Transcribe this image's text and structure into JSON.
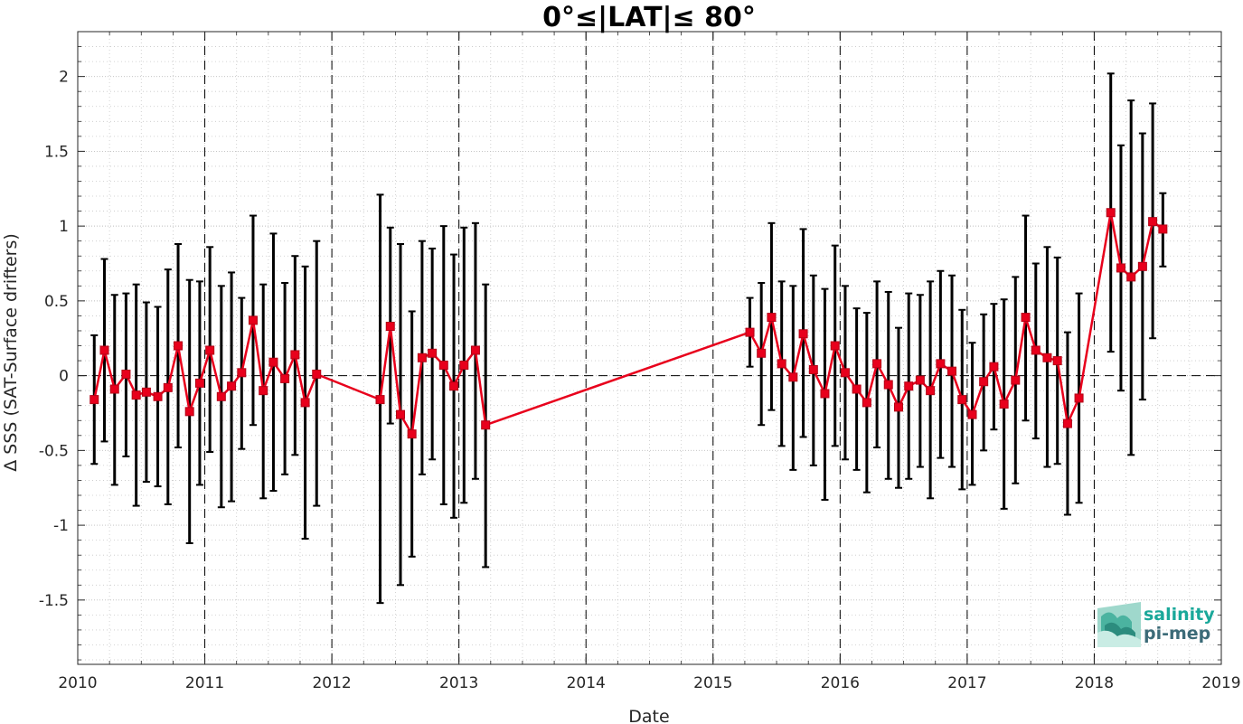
{
  "chart_data": {
    "type": "line",
    "title": "0°≤|LAT|≤ 80°",
    "xlabel": "Date",
    "ylabel": "Δ SSS (SAT-Surface drifters)",
    "xlim": [
      2010,
      2019
    ],
    "ylim": [
      -1.93,
      2.3
    ],
    "x_ticks": [
      "2010",
      "2011",
      "2012",
      "2013",
      "2014",
      "2015",
      "2016",
      "2017",
      "2018",
      "2019"
    ],
    "y_ticks": [
      "-1.5",
      "-1",
      "-0.5",
      "0",
      "0.5",
      "1",
      "1.5",
      "2"
    ],
    "y_tick_values": [
      -1.5,
      -1,
      -0.5,
      0,
      0.5,
      1,
      1.5,
      2
    ],
    "grid": true,
    "minor_grid": true,
    "year_dividers": [
      2011,
      2012,
      2013,
      2014,
      2015,
      2016,
      2017,
      2018
    ],
    "zero_line": 0,
    "series": [
      {
        "color": "#e8001c",
        "errorbar_color": "#000000",
        "marker": "square",
        "points": [
          {
            "x": 2010.13,
            "y": -0.16,
            "lo": -0.59,
            "hi": 0.27
          },
          {
            "x": 2010.21,
            "y": 0.17,
            "lo": -0.44,
            "hi": 0.78
          },
          {
            "x": 2010.29,
            "y": -0.09,
            "lo": -0.73,
            "hi": 0.54
          },
          {
            "x": 2010.38,
            "y": 0.01,
            "lo": -0.54,
            "hi": 0.55
          },
          {
            "x": 2010.46,
            "y": -0.13,
            "lo": -0.87,
            "hi": 0.61
          },
          {
            "x": 2010.54,
            "y": -0.11,
            "lo": -0.71,
            "hi": 0.49
          },
          {
            "x": 2010.63,
            "y": -0.14,
            "lo": -0.74,
            "hi": 0.46
          },
          {
            "x": 2010.71,
            "y": -0.08,
            "lo": -0.86,
            "hi": 0.71
          },
          {
            "x": 2010.79,
            "y": 0.2,
            "lo": -0.48,
            "hi": 0.88
          },
          {
            "x": 2010.88,
            "y": -0.24,
            "lo": -1.12,
            "hi": 0.64
          },
          {
            "x": 2010.96,
            "y": -0.05,
            "lo": -0.73,
            "hi": 0.63
          },
          {
            "x": 2011.04,
            "y": 0.17,
            "lo": -0.51,
            "hi": 0.86
          },
          {
            "x": 2011.13,
            "y": -0.14,
            "lo": -0.88,
            "hi": 0.6
          },
          {
            "x": 2011.21,
            "y": -0.07,
            "lo": -0.84,
            "hi": 0.69
          },
          {
            "x": 2011.29,
            "y": 0.02,
            "lo": -0.49,
            "hi": 0.52
          },
          {
            "x": 2011.38,
            "y": 0.37,
            "lo": -0.33,
            "hi": 1.07
          },
          {
            "x": 2011.46,
            "y": -0.1,
            "lo": -0.82,
            "hi": 0.61
          },
          {
            "x": 2011.54,
            "y": 0.09,
            "lo": -0.77,
            "hi": 0.95
          },
          {
            "x": 2011.63,
            "y": -0.02,
            "lo": -0.66,
            "hi": 0.62
          },
          {
            "x": 2011.71,
            "y": 0.14,
            "lo": -0.53,
            "hi": 0.8
          },
          {
            "x": 2011.79,
            "y": -0.18,
            "lo": -1.09,
            "hi": 0.73
          },
          {
            "x": 2011.88,
            "y": 0.01,
            "lo": -0.87,
            "hi": 0.9
          },
          {
            "x": 2012.38,
            "y": -0.16,
            "lo": -1.52,
            "hi": 1.21
          },
          {
            "x": 2012.46,
            "y": 0.33,
            "lo": -0.32,
            "hi": 0.99
          },
          {
            "x": 2012.54,
            "y": -0.26,
            "lo": -1.4,
            "hi": 0.88
          },
          {
            "x": 2012.63,
            "y": -0.39,
            "lo": -1.21,
            "hi": 0.43
          },
          {
            "x": 2012.71,
            "y": 0.12,
            "lo": -0.66,
            "hi": 0.9
          },
          {
            "x": 2012.79,
            "y": 0.15,
            "lo": -0.56,
            "hi": 0.85
          },
          {
            "x": 2012.88,
            "y": 0.07,
            "lo": -0.86,
            "hi": 1.0
          },
          {
            "x": 2012.96,
            "y": -0.07,
            "lo": -0.95,
            "hi": 0.81
          },
          {
            "x": 2013.04,
            "y": 0.07,
            "lo": -0.85,
            "hi": 0.99
          },
          {
            "x": 2013.13,
            "y": 0.17,
            "lo": -0.69,
            "hi": 1.02
          },
          {
            "x": 2013.21,
            "y": -0.33,
            "lo": -1.28,
            "hi": 0.61
          },
          {
            "x": 2015.29,
            "y": 0.29,
            "lo": 0.06,
            "hi": 0.52
          },
          {
            "x": 2015.38,
            "y": 0.15,
            "lo": -0.33,
            "hi": 0.62
          },
          {
            "x": 2015.46,
            "y": 0.39,
            "lo": -0.23,
            "hi": 1.02
          },
          {
            "x": 2015.54,
            "y": 0.08,
            "lo": -0.47,
            "hi": 0.63
          },
          {
            "x": 2015.63,
            "y": -0.01,
            "lo": -0.63,
            "hi": 0.6
          },
          {
            "x": 2015.71,
            "y": 0.28,
            "lo": -0.41,
            "hi": 0.98
          },
          {
            "x": 2015.79,
            "y": 0.04,
            "lo": -0.6,
            "hi": 0.67
          },
          {
            "x": 2015.88,
            "y": -0.12,
            "lo": -0.83,
            "hi": 0.58
          },
          {
            "x": 2015.96,
            "y": 0.2,
            "lo": -0.47,
            "hi": 0.87
          },
          {
            "x": 2016.04,
            "y": 0.02,
            "lo": -0.56,
            "hi": 0.6
          },
          {
            "x": 2016.13,
            "y": -0.09,
            "lo": -0.63,
            "hi": 0.45
          },
          {
            "x": 2016.21,
            "y": -0.18,
            "lo": -0.78,
            "hi": 0.42
          },
          {
            "x": 2016.29,
            "y": 0.08,
            "lo": -0.48,
            "hi": 0.63
          },
          {
            "x": 2016.38,
            "y": -0.06,
            "lo": -0.69,
            "hi": 0.56
          },
          {
            "x": 2016.46,
            "y": -0.21,
            "lo": -0.75,
            "hi": 0.32
          },
          {
            "x": 2016.54,
            "y": -0.07,
            "lo": -0.69,
            "hi": 0.55
          },
          {
            "x": 2016.63,
            "y": -0.03,
            "lo": -0.61,
            "hi": 0.54
          },
          {
            "x": 2016.71,
            "y": -0.1,
            "lo": -0.82,
            "hi": 0.63
          },
          {
            "x": 2016.79,
            "y": 0.08,
            "lo": -0.55,
            "hi": 0.7
          },
          {
            "x": 2016.88,
            "y": 0.03,
            "lo": -0.61,
            "hi": 0.67
          },
          {
            "x": 2016.96,
            "y": -0.16,
            "lo": -0.76,
            "hi": 0.44
          },
          {
            "x": 2017.04,
            "y": -0.26,
            "lo": -0.73,
            "hi": 0.22
          },
          {
            "x": 2017.13,
            "y": -0.04,
            "lo": -0.5,
            "hi": 0.41
          },
          {
            "x": 2017.21,
            "y": 0.06,
            "lo": -0.36,
            "hi": 0.48
          },
          {
            "x": 2017.29,
            "y": -0.19,
            "lo": -0.89,
            "hi": 0.51
          },
          {
            "x": 2017.38,
            "y": -0.03,
            "lo": -0.72,
            "hi": 0.66
          },
          {
            "x": 2017.46,
            "y": 0.39,
            "lo": -0.3,
            "hi": 1.07
          },
          {
            "x": 2017.54,
            "y": 0.17,
            "lo": -0.42,
            "hi": 0.75
          },
          {
            "x": 2017.63,
            "y": 0.12,
            "lo": -0.61,
            "hi": 0.86
          },
          {
            "x": 2017.71,
            "y": 0.1,
            "lo": -0.59,
            "hi": 0.79
          },
          {
            "x": 2017.79,
            "y": -0.32,
            "lo": -0.93,
            "hi": 0.29
          },
          {
            "x": 2017.88,
            "y": -0.15,
            "lo": -0.85,
            "hi": 0.55
          },
          {
            "x": 2018.13,
            "y": 1.09,
            "lo": 0.16,
            "hi": 2.02
          },
          {
            "x": 2018.21,
            "y": 0.72,
            "lo": -0.1,
            "hi": 1.54
          },
          {
            "x": 2018.29,
            "y": 0.66,
            "lo": -0.53,
            "hi": 1.84
          },
          {
            "x": 2018.38,
            "y": 0.73,
            "lo": -0.16,
            "hi": 1.62
          },
          {
            "x": 2018.46,
            "y": 1.03,
            "lo": 0.25,
            "hi": 1.82
          },
          {
            "x": 2018.54,
            "y": 0.98,
            "lo": 0.73,
            "hi": 1.22
          }
        ]
      }
    ]
  },
  "logo": {
    "line1": "salinity",
    "line2": "pi-mep",
    "color1": "#1aa89a",
    "color2": "#3c6b78"
  }
}
